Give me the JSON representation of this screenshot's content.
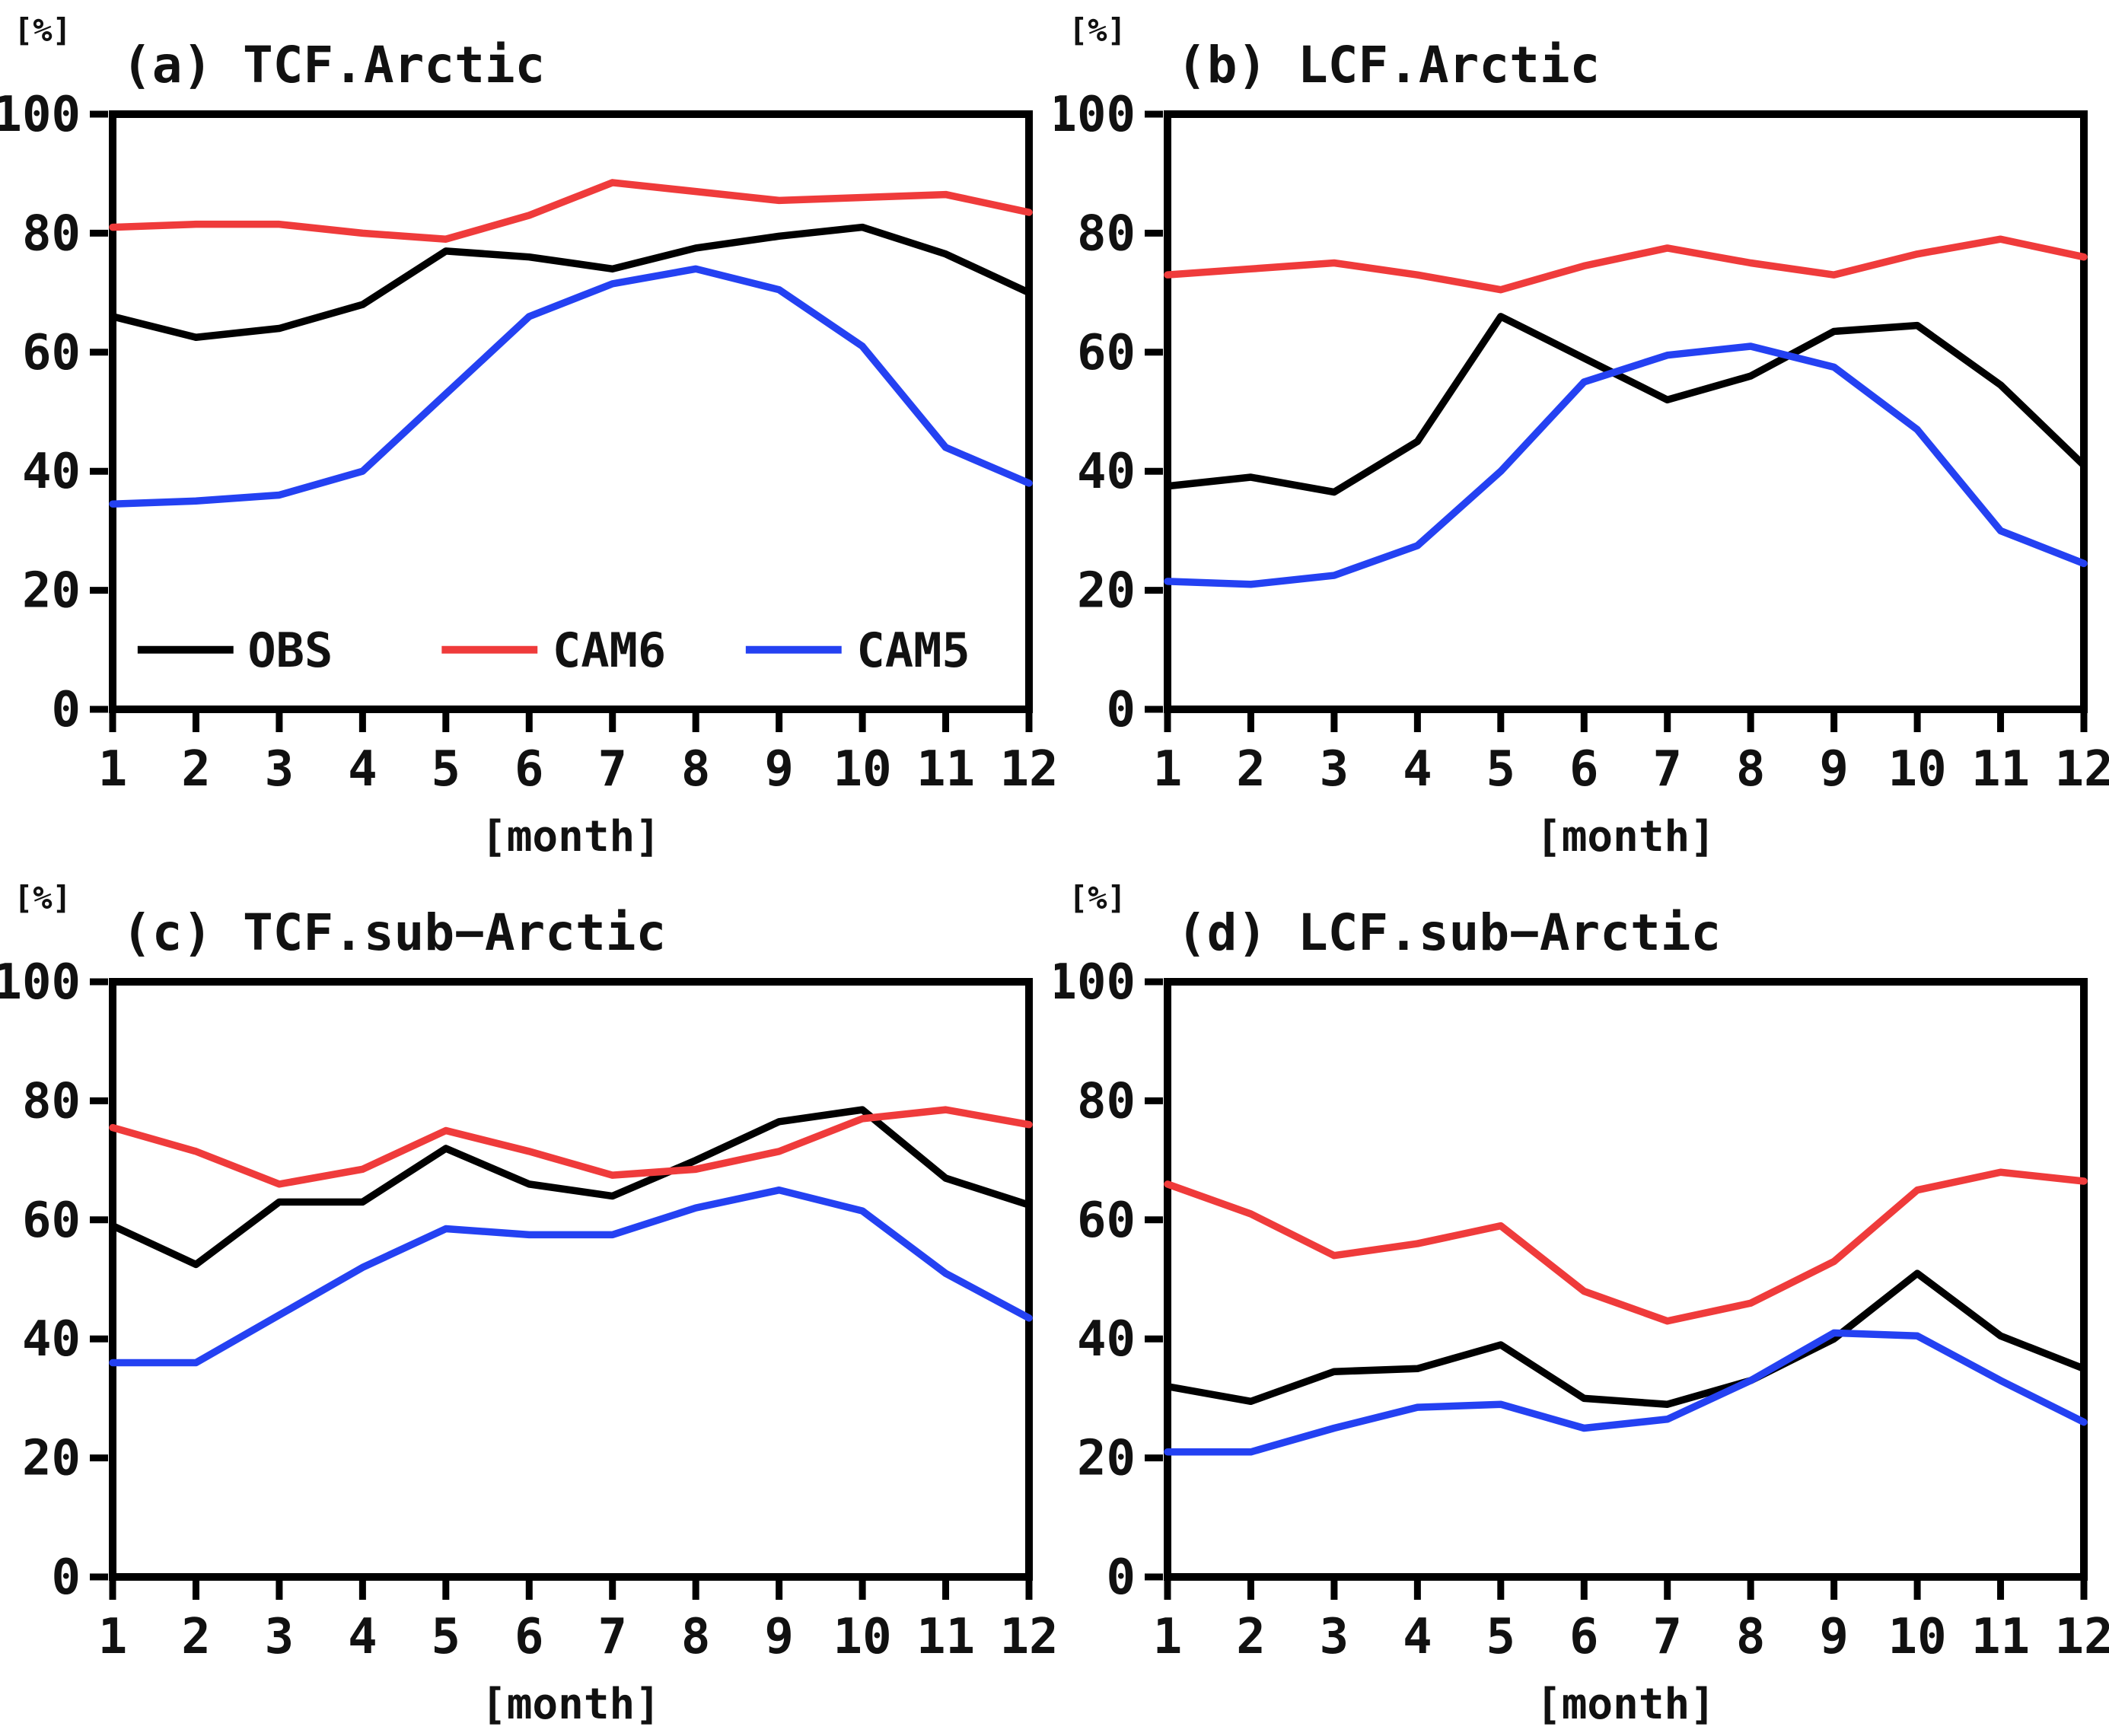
{
  "figure": {
    "background": "#ffffff",
    "frame_color": "#000000",
    "y_unit_label": "[%]",
    "x_axis_label": "[month]"
  },
  "legend": {
    "items": [
      {
        "label": "OBS",
        "color": "#000000"
      },
      {
        "label": "CAM6",
        "color": "#ef3b3b"
      },
      {
        "label": "CAM5",
        "color": "#2441f2"
      }
    ]
  },
  "chart_data": [
    {
      "id": "a",
      "type": "line",
      "title": "(a) TCF.Arctic",
      "xlabel": "[month]",
      "ylabel": "[%]",
      "x": [
        1,
        2,
        3,
        4,
        5,
        6,
        7,
        8,
        9,
        10,
        11,
        12
      ],
      "ylim": [
        0,
        100
      ],
      "yticks": [
        0,
        20,
        40,
        60,
        80,
        100
      ],
      "grid": false,
      "legend_visible": true,
      "legend_position": "inside-bottom-left",
      "series": [
        {
          "name": "OBS",
          "color": "#000000",
          "values": [
            66,
            62.5,
            64,
            68,
            77,
            76,
            74,
            77.5,
            79.5,
            81,
            76.5,
            70
          ]
        },
        {
          "name": "CAM6",
          "color": "#ef3b3b",
          "values": [
            81,
            81.5,
            81.5,
            80,
            79,
            83,
            88.5,
            87,
            85.5,
            86,
            86.5,
            83.5
          ]
        },
        {
          "name": "CAM5",
          "color": "#2441f2",
          "values": [
            34.5,
            35,
            36,
            40,
            53,
            66,
            71.5,
            74,
            70.5,
            61,
            44,
            38
          ]
        }
      ]
    },
    {
      "id": "b",
      "type": "line",
      "title": "(b) LCF.Arctic",
      "xlabel": "[month]",
      "ylabel": "[%]",
      "x": [
        1,
        2,
        3,
        4,
        5,
        6,
        7,
        8,
        9,
        10,
        11,
        12
      ],
      "ylim": [
        0,
        100
      ],
      "yticks": [
        0,
        20,
        40,
        60,
        80,
        100
      ],
      "grid": false,
      "legend_visible": false,
      "series": [
        {
          "name": "OBS",
          "color": "#000000",
          "values": [
            37.5,
            39,
            36.5,
            45,
            66,
            59,
            52,
            56,
            63.5,
            64.5,
            54.5,
            41
          ]
        },
        {
          "name": "CAM6",
          "color": "#ef3b3b",
          "values": [
            73,
            74,
            75,
            73,
            70.5,
            74.5,
            77.5,
            75,
            73,
            76.5,
            79,
            76
          ]
        },
        {
          "name": "CAM5",
          "color": "#2441f2",
          "values": [
            21.5,
            21,
            22.5,
            27.5,
            40,
            55,
            59.5,
            61,
            57.5,
            47,
            30,
            24.5
          ]
        }
      ]
    },
    {
      "id": "c",
      "type": "line",
      "title": "(c) TCF.sub−Arctic",
      "xlabel": "[month]",
      "ylabel": "[%]",
      "x": [
        1,
        2,
        3,
        4,
        5,
        6,
        7,
        8,
        9,
        10,
        11,
        12
      ],
      "ylim": [
        0,
        100
      ],
      "yticks": [
        0,
        20,
        40,
        60,
        80,
        100
      ],
      "grid": false,
      "legend_visible": false,
      "series": [
        {
          "name": "OBS",
          "color": "#000000",
          "values": [
            59,
            52.5,
            63,
            63,
            72,
            66,
            64,
            70,
            76.5,
            78.5,
            67,
            62.5
          ]
        },
        {
          "name": "CAM6",
          "color": "#ef3b3b",
          "values": [
            75.5,
            71.5,
            66,
            68.5,
            75,
            71.5,
            67.5,
            68.5,
            71.5,
            77,
            78.5,
            76
          ]
        },
        {
          "name": "CAM5",
          "color": "#2441f2",
          "values": [
            36,
            36,
            44,
            52,
            58.5,
            57.5,
            57.5,
            62,
            65,
            61.5,
            51,
            43.5
          ]
        }
      ]
    },
    {
      "id": "d",
      "type": "line",
      "title": "(d) LCF.sub−Arctic",
      "xlabel": "[month]",
      "ylabel": "[%]",
      "x": [
        1,
        2,
        3,
        4,
        5,
        6,
        7,
        8,
        9,
        10,
        11,
        12
      ],
      "ylim": [
        0,
        100
      ],
      "yticks": [
        0,
        20,
        40,
        60,
        80,
        100
      ],
      "grid": false,
      "legend_visible": false,
      "series": [
        {
          "name": "OBS",
          "color": "#000000",
          "values": [
            32,
            29.5,
            34.5,
            35,
            39,
            30,
            29,
            33,
            40,
            51,
            40.5,
            35
          ]
        },
        {
          "name": "CAM6",
          "color": "#ef3b3b",
          "values": [
            66,
            61,
            54,
            56,
            59,
            48,
            43,
            46,
            53,
            65,
            68,
            66.5
          ]
        },
        {
          "name": "CAM5",
          "color": "#2441f2",
          "values": [
            21,
            21,
            25,
            28.5,
            29,
            25,
            26.5,
            33,
            41,
            40.5,
            33,
            26
          ]
        }
      ]
    }
  ]
}
